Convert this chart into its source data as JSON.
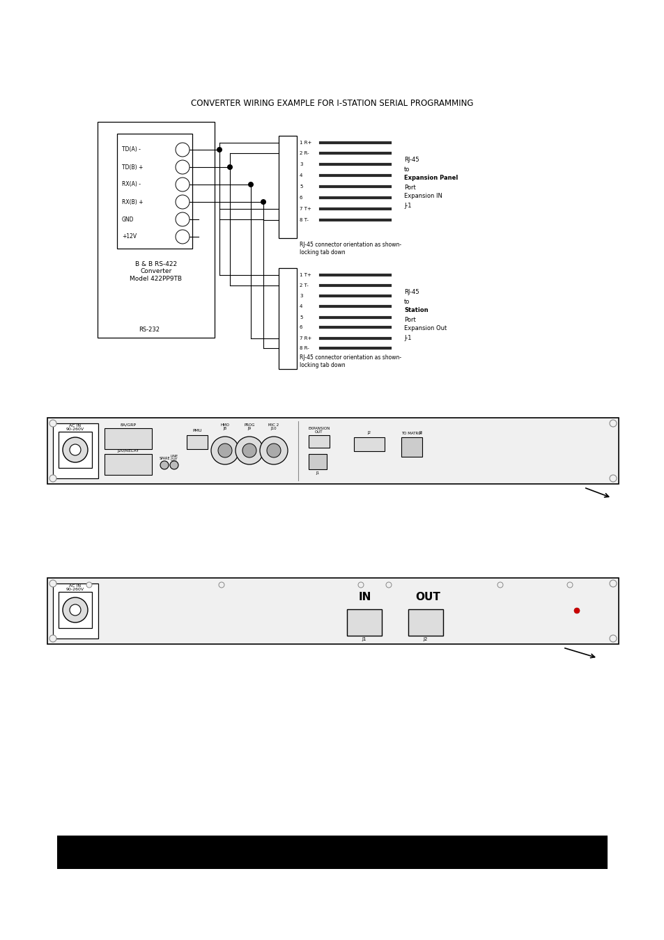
{
  "bg_color": "#ffffff",
  "title": "CONVERTER WIRING EXAMPLE FOR I-STATION SERIAL PROGRAMMING",
  "pin_labels_left": [
    "TD(A) -",
    "TD(B) +",
    "RX(A) -",
    "RX(B) +",
    "GND",
    "+12V"
  ],
  "pin_numbers_top": [
    "1 R+",
    "2 R-",
    "3",
    "4",
    "5",
    "6",
    "7 T+",
    "8 T-"
  ],
  "pin_numbers_bot": [
    "1 T+",
    "2 T-",
    "3",
    "4",
    "5",
    "6",
    "7 R+",
    "8 R-"
  ],
  "rj45_top_label_lines": [
    "RJ-45",
    "to",
    "Expansion Panel",
    "Port",
    "Expansion IN",
    "J-1"
  ],
  "rj45_bot_label_lines": [
    "RJ-45",
    "to",
    "Station",
    "Port",
    "Expansion Out",
    "J-1"
  ],
  "rj45_note": "RJ-45 connector orientation as shown-\nlocking tab down",
  "converter_label": "B & B RS-422\nConverter\nModel 422PP9TB",
  "rs232_label": "RS-232"
}
